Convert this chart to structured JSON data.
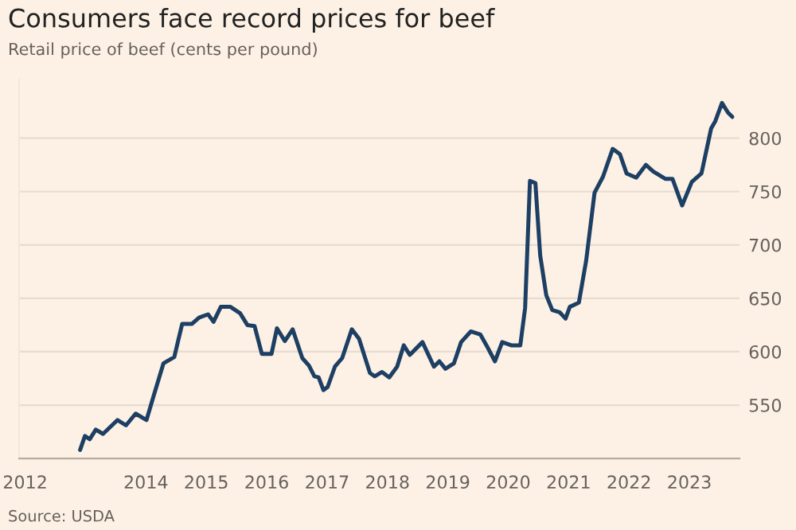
{
  "chart_data": {
    "type": "line",
    "title": "Consumers face record prices for beef",
    "subtitle": "Retail price of beef (cents per pound)",
    "annotations": [
      "Source: USDA"
    ],
    "series": [
      {
        "color": "#1d3f63",
        "x": [
          2012.91,
          2012.99,
          2013.07,
          2013.17,
          2013.29,
          2013.53,
          2013.67,
          2013.83,
          2014.01,
          2014.13,
          2014.29,
          2014.47,
          2014.6,
          2014.76,
          2014.88,
          2015.03,
          2015.12,
          2015.24,
          2015.4,
          2015.56,
          2015.68,
          2015.8,
          2015.92,
          2016.08,
          2016.17,
          2016.3,
          2016.43,
          2016.59,
          2016.7,
          2016.79,
          2016.86,
          2016.94,
          2017.01,
          2017.13,
          2017.25,
          2017.41,
          2017.53,
          2017.71,
          2017.79,
          2017.91,
          2018.03,
          2018.16,
          2018.27,
          2018.37,
          2018.58,
          2018.77,
          2018.86,
          2018.96,
          2019.1,
          2019.22,
          2019.38,
          2019.54,
          2019.64,
          2019.78,
          2019.9,
          2020.05,
          2020.2,
          2020.28,
          2020.36,
          2020.45,
          2020.53,
          2020.63,
          2020.73,
          2020.85,
          2020.95,
          2021.02,
          2021.17,
          2021.29,
          2021.43,
          2021.57,
          2021.73,
          2021.85,
          2021.96,
          2022.12,
          2022.28,
          2022.4,
          2022.6,
          2022.72,
          2022.88,
          2023.04,
          2023.2,
          2023.36,
          2023.43,
          2023.54,
          2023.64,
          2023.71
        ],
        "values": [
          508,
          521,
          518,
          527,
          523,
          536,
          531,
          542,
          536,
          559,
          589,
          595,
          626,
          626,
          632,
          635,
          628,
          642,
          642,
          636,
          625,
          624,
          598,
          598,
          622,
          610,
          621,
          594,
          587,
          577,
          576,
          564,
          567,
          586,
          594,
          621,
          612,
          580,
          577,
          581,
          576,
          586,
          606,
          597,
          609,
          586,
          591,
          584,
          589,
          609,
          619,
          616,
          606,
          591,
          609,
          606,
          606,
          641,
          760,
          758,
          690,
          653,
          639,
          637,
          631,
          642,
          646,
          685,
          749,
          764,
          790,
          785,
          767,
          763,
          775,
          769,
          762,
          762,
          737,
          759,
          767,
          809,
          816,
          833,
          824,
          820
        ]
      }
    ],
    "xlim": [
      2011.9,
      2023.83
    ],
    "ylim": [
      500,
      855
    ],
    "xticks": [
      2012,
      2014,
      2015,
      2016,
      2017,
      2018,
      2019,
      2020,
      2021,
      2022,
      2023
    ],
    "yticks": [
      550,
      600,
      650,
      700,
      750,
      800
    ],
    "grid": "y",
    "legend": false
  }
}
